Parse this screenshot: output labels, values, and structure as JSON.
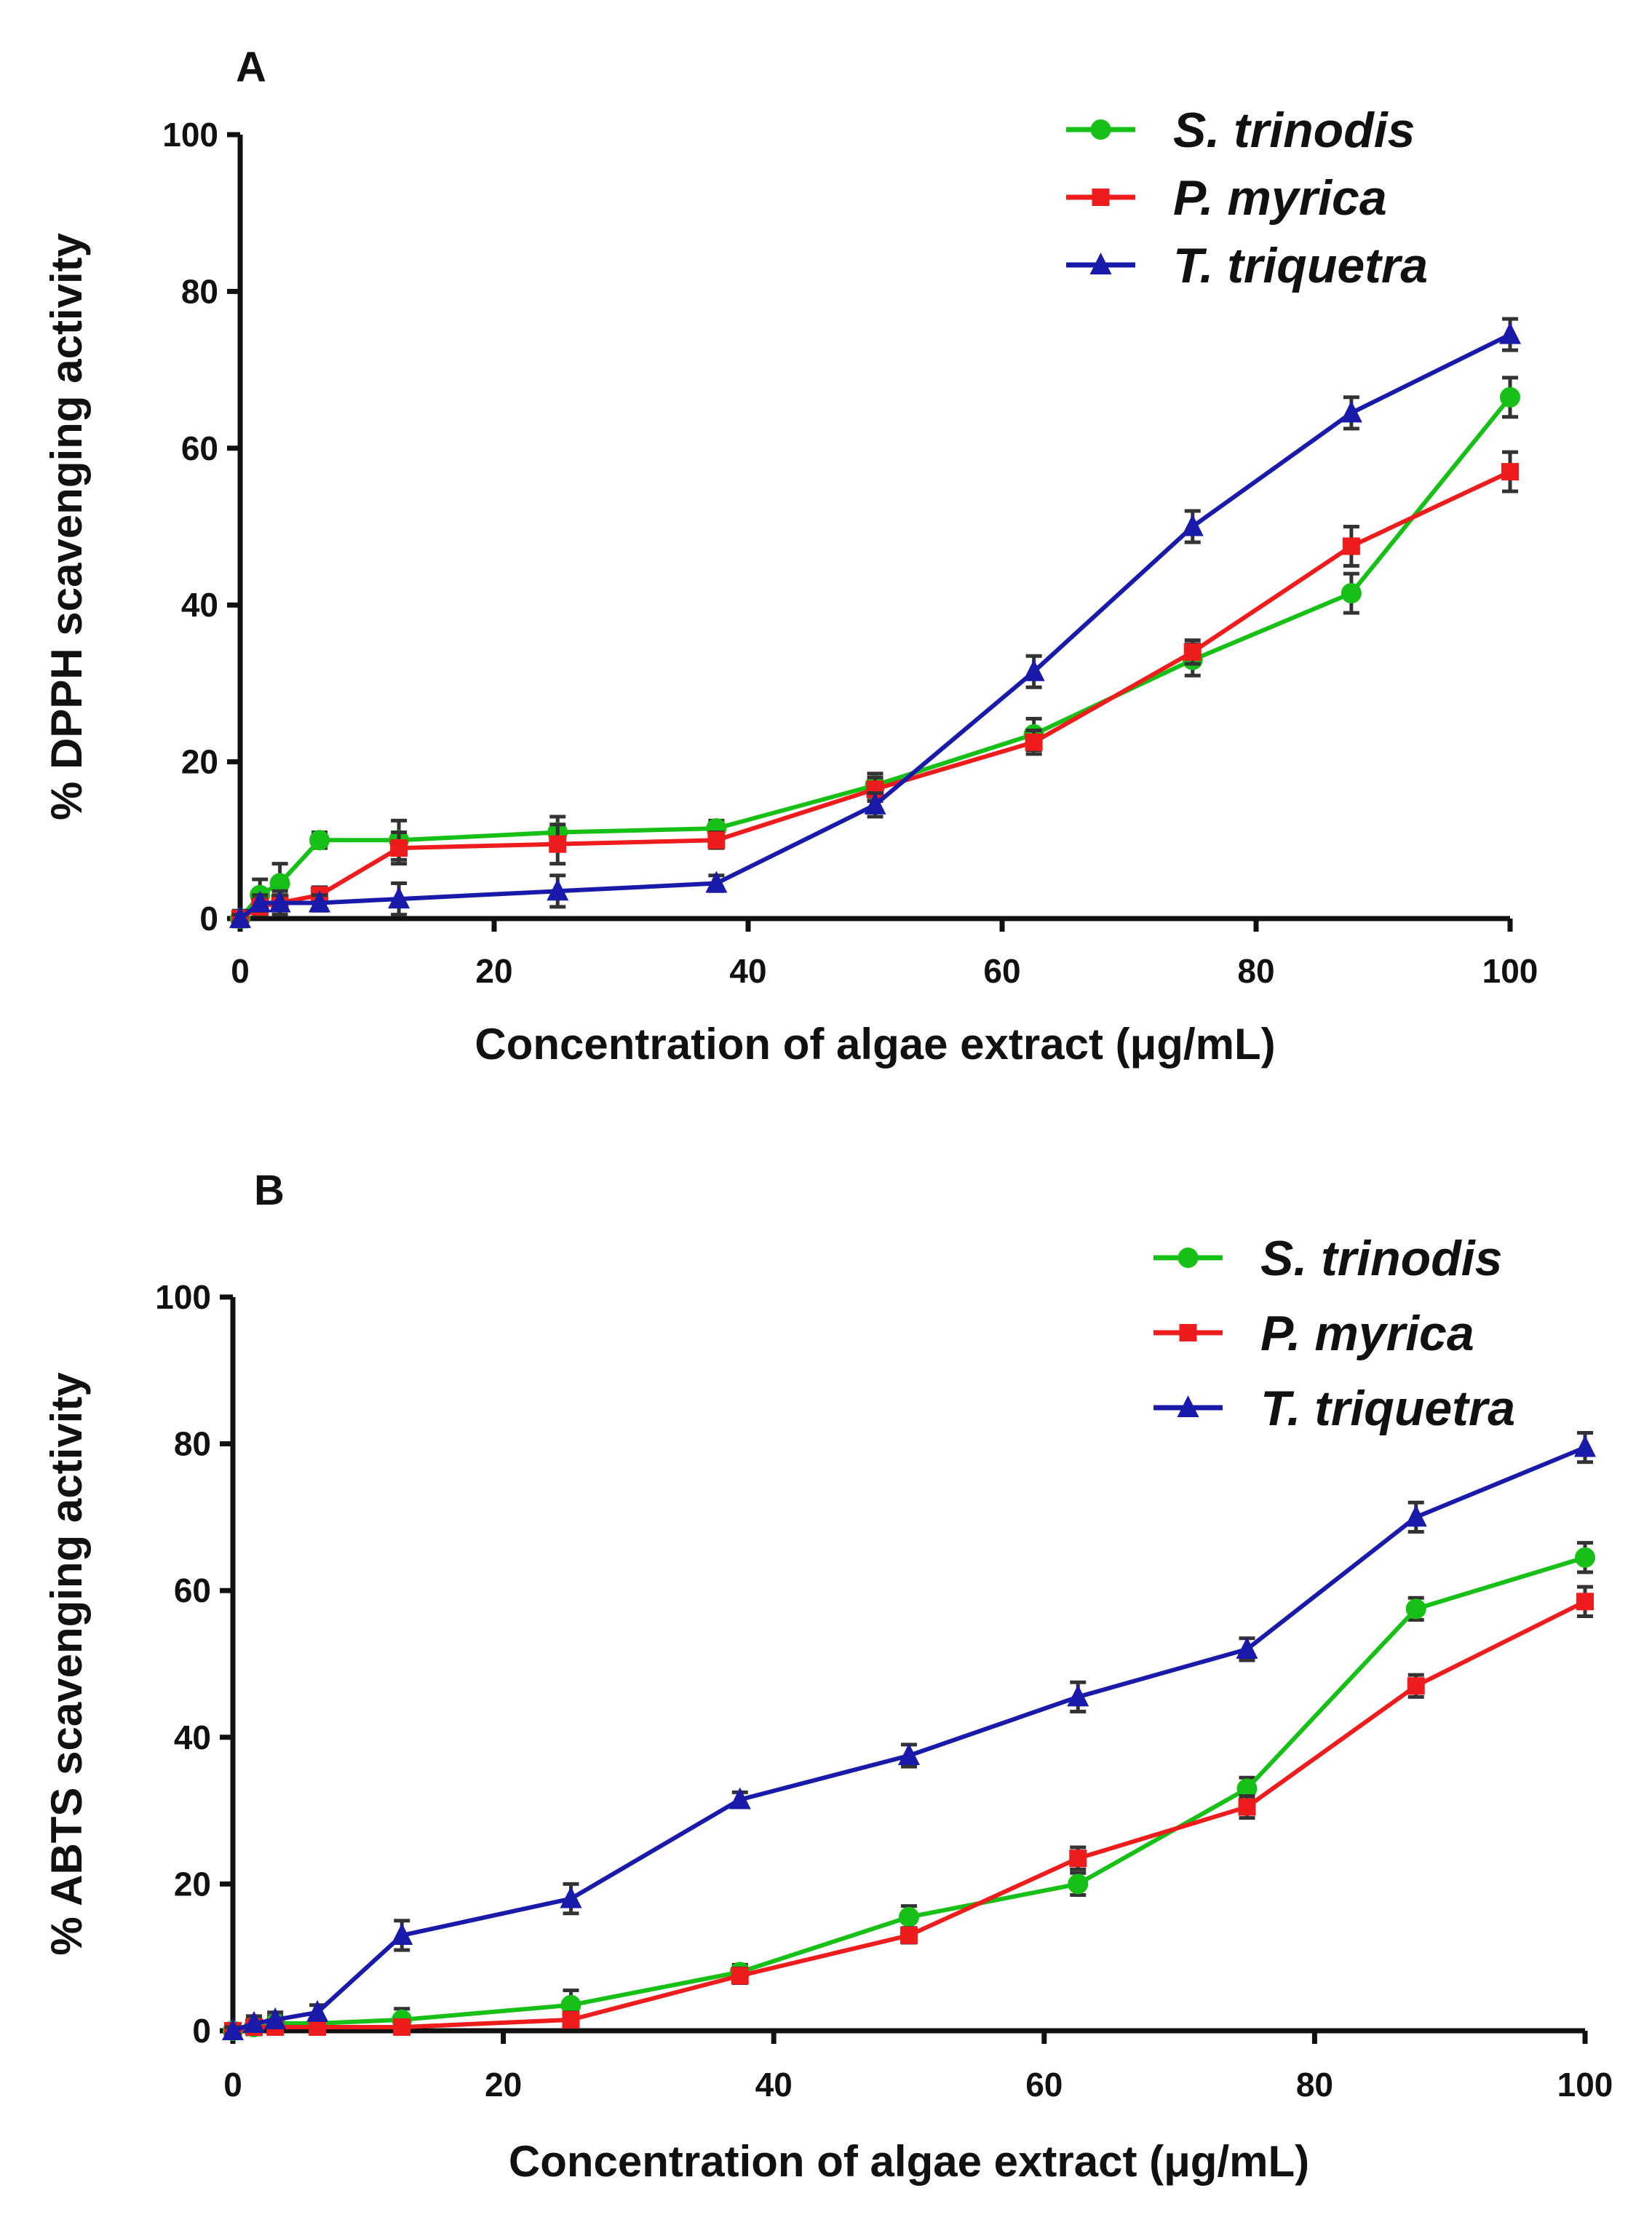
{
  "colors": {
    "S. trinodis": "#17c017",
    "P. myrica": "#ee1c1c",
    "T. triquetra": "#1a1aaa",
    "axis": "#111111",
    "error": "#333333"
  },
  "chart_data": [
    {
      "panel": "A",
      "type": "line",
      "title": "",
      "xlabel": "Concentration of algae extract (μg/mL)",
      "ylabel": "% DPPH scavenging activity",
      "xlim": [
        0,
        100
      ],
      "ylim": [
        0,
        100
      ],
      "xticks": [
        0,
        20,
        40,
        60,
        80,
        100
      ],
      "yticks": [
        0,
        20,
        40,
        60,
        80,
        100
      ],
      "legend_position": "top-right",
      "x": [
        0,
        1.56,
        3.13,
        6.25,
        12.5,
        25,
        37.5,
        50,
        62.5,
        75,
        87.5,
        100
      ],
      "series": [
        {
          "name": "S. trinodis",
          "marker": "circle",
          "color_key": "S. trinodis",
          "values": [
            0,
            3,
            4.5,
            10,
            10,
            11,
            11.5,
            17,
            23.5,
            33,
            41.5,
            66.5
          ],
          "errors": [
            1,
            2,
            2.5,
            1,
            2.5,
            2,
            1,
            1.5,
            2,
            2,
            2.5,
            2.5
          ]
        },
        {
          "name": "P. myrica",
          "marker": "square",
          "color_key": "P. myrica",
          "values": [
            0,
            1.5,
            2,
            3,
            9,
            9.5,
            10,
            16.5,
            22.5,
            34,
            47.5,
            57
          ],
          "errors": [
            1,
            1,
            1.5,
            1,
            2,
            2.5,
            1,
            1.5,
            1.5,
            1.5,
            2.5,
            2.5
          ]
        },
        {
          "name": "T. triquetra",
          "marker": "triangle",
          "color_key": "T. triquetra",
          "values": [
            0,
            2,
            2,
            2,
            2.5,
            3.5,
            4.5,
            14.5,
            31.5,
            50,
            64.5,
            74.5
          ],
          "errors": [
            0.5,
            1,
            1,
            1,
            2,
            2,
            1,
            1.5,
            2,
            2,
            2,
            2
          ]
        }
      ]
    },
    {
      "panel": "B",
      "type": "line",
      "title": "",
      "xlabel": "Concentration of algae extract (μg/mL)",
      "ylabel": "% ABTS scavenging activity",
      "xlim": [
        0,
        100
      ],
      "ylim": [
        0,
        100
      ],
      "xticks": [
        0,
        20,
        40,
        60,
        80,
        100
      ],
      "yticks": [
        0,
        20,
        40,
        60,
        80,
        100
      ],
      "legend_position": "top-right",
      "x": [
        0,
        1.56,
        3.13,
        6.25,
        12.5,
        25,
        37.5,
        50,
        62.5,
        75,
        87.5,
        100
      ],
      "series": [
        {
          "name": "S. trinodis",
          "marker": "circle",
          "color_key": "S. trinodis",
          "values": [
            0,
            0.5,
            1,
            1,
            1.5,
            3.5,
            8,
            15.5,
            20,
            33,
            57.5,
            64.5
          ],
          "errors": [
            0.5,
            1,
            1,
            0.5,
            1.5,
            2,
            1,
            1.5,
            1.5,
            1.5,
            1.5,
            2
          ]
        },
        {
          "name": "P. myrica",
          "marker": "square",
          "color_key": "P. myrica",
          "values": [
            0,
            0.5,
            0.5,
            0.5,
            0.5,
            1.5,
            7.5,
            13,
            23.5,
            30.5,
            47,
            58.5
          ],
          "errors": [
            0.5,
            0.5,
            0.5,
            0.5,
            0.5,
            1,
            1,
            1,
            1.5,
            1.5,
            1.5,
            2
          ]
        },
        {
          "name": "T. triquetra",
          "marker": "triangle",
          "color_key": "T. triquetra",
          "values": [
            0,
            1,
            1.5,
            2.5,
            13,
            18,
            31.5,
            37.5,
            45.5,
            52,
            70,
            79.5
          ],
          "errors": [
            0.5,
            1,
            1,
            1,
            2,
            2,
            1,
            1.5,
            2,
            1.5,
            2,
            2
          ]
        }
      ]
    }
  ]
}
